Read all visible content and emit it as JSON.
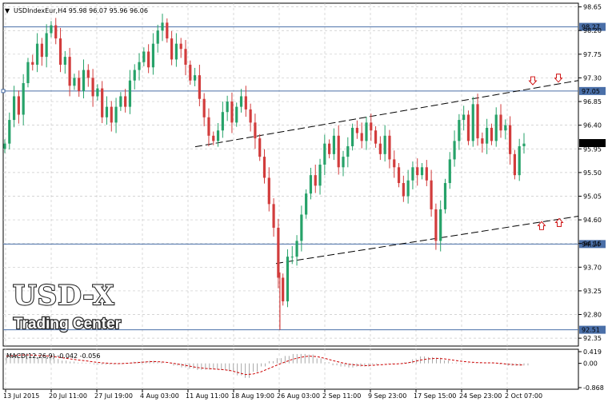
{
  "chart_data": {
    "type": "candlestick",
    "title": "USDIndexEur,H4  95.98 96.07 95.96 96.06",
    "symbol": "USDIndexEur,H4",
    "last_ohlc": [
      95.98,
      96.07,
      95.96,
      96.06
    ],
    "ylim": [
      92.2,
      98.72
    ],
    "y_ticks": [
      "98.65",
      "98.20",
      "97.75",
      "97.30",
      "96.85",
      "96.40",
      "95.95",
      "95.50",
      "95.05",
      "94.60",
      "94.15",
      "93.70",
      "93.25",
      "92.80",
      "92.35"
    ],
    "x_ticks": [
      "13 Jul 2015",
      "20 Jul 11:00",
      "27 Jul 19:00",
      "4 Aug 03:00",
      "11 Aug 11:00",
      "18 Aug 19:00",
      "26 Aug 03:00",
      "2 Sep 11:00",
      "9 Sep 23:00",
      "17 Sep 15:00",
      "24 Sep 23:00",
      "2 Oct 07:00"
    ],
    "grid": true,
    "horizontal_levels": [
      {
        "label": "98.27",
        "value": 98.27
      },
      {
        "label": "97.05",
        "value": 97.05
      },
      {
        "label": "94.14",
        "value": 94.14
      },
      {
        "label": "92.51",
        "value": 92.51
      }
    ],
    "current_price_label": "96.06",
    "current_price": 96.06,
    "trendlines": [
      {
        "name": "upper channel",
        "from": [
          "11 Aug 11:00",
          95.99
        ],
        "to": [
          "right edge",
          97.25
        ]
      },
      {
        "name": "lower channel",
        "from": [
          "26 Aug 03:00",
          93.77
        ],
        "to": [
          "right edge",
          94.67
        ]
      }
    ],
    "arrows": [
      {
        "direction": "down",
        "near": 97.23
      },
      {
        "direction": "down",
        "near": 97.28
      },
      {
        "direction": "up",
        "near": 94.49
      },
      {
        "direction": "up",
        "near": 94.55
      }
    ],
    "watermark": {
      "line1": "USD-X",
      "line2": "Trading Center"
    },
    "macd": {
      "label": "MACD(12,26,9) -0.042 -0.056",
      "params": "12,26,9",
      "macd_value": -0.042,
      "signal_value": -0.056,
      "ylim": [
        -0.868,
        0.419
      ],
      "y_ticks": [
        "0.419",
        "0.00",
        "-0.868"
      ],
      "signal_color": "#cc0000",
      "histogram_color": "#a8a8a8"
    },
    "colors": {
      "bull": "#26a269",
      "bear": "#d23c3c",
      "level_line": "#4a6fa8",
      "grid": "#c8c8c8"
    },
    "prices": [
      96.05,
      96.5,
      96.95,
      96.6,
      97.2,
      97.6,
      97.55,
      97.95,
      97.7,
      98.15,
      98.3,
      98.05,
      97.55,
      97.7,
      97.15,
      97.3,
      97.05,
      97.45,
      97.3,
      96.95,
      97.1,
      96.55,
      96.75,
      96.45,
      96.75,
      96.95,
      96.75,
      97.25,
      97.45,
      97.6,
      97.8,
      97.5,
      97.95,
      98.2,
      98.35,
      98.05,
      97.65,
      97.95,
      97.85,
      97.55,
      97.25,
      97.35,
      96.9,
      96.55,
      96.2,
      96.1,
      96.3,
      96.65,
      96.85,
      96.45,
      96.75,
      96.95,
      96.7,
      96.45,
      96.15,
      95.8,
      95.4,
      94.9,
      94.45,
      93.5,
      93.05,
      93.9,
      93.9,
      94.2,
      94.7,
      95.1,
      95.45,
      95.25,
      95.65,
      96.05,
      95.85,
      96.2,
      95.6,
      95.8,
      96.0,
      96.35,
      96.25,
      96.1,
      96.45,
      96.3,
      96.05,
      95.85,
      96.2,
      95.75,
      95.6,
      95.3,
      95.05,
      95.35,
      95.6,
      95.45,
      95.6,
      95.35,
      94.8,
      94.2,
      94.8,
      95.3,
      95.75,
      96.1,
      96.5,
      96.6,
      96.1,
      96.8,
      96.15,
      96.05,
      96.35,
      96.1,
      96.6,
      96.3,
      96.4,
      95.85,
      95.45,
      96.0,
      96.05
    ],
    "macd_signal": [
      0.26,
      0.28,
      0.3,
      0.3,
      0.28,
      0.27,
      0.24,
      0.2,
      0.16,
      0.12,
      0.09,
      0.05,
      0.02,
      0.0,
      -0.01,
      0.0,
      0.02,
      0.04,
      0.06,
      0.06,
      0.04,
      0.0,
      -0.05,
      -0.1,
      -0.15,
      -0.18,
      -0.2,
      -0.22,
      -0.25,
      -0.32,
      -0.4,
      -0.38,
      -0.3,
      -0.18,
      -0.06,
      0.05,
      0.15,
      0.22,
      0.26,
      0.24,
      0.18,
      0.1,
      0.03,
      -0.03,
      -0.06,
      -0.08,
      -0.07,
      -0.05,
      -0.03,
      -0.02,
      0.0,
      0.05,
      0.12,
      0.16,
      0.18,
      0.16,
      0.12,
      0.08,
      0.05,
      0.03,
      0.02,
      0.02,
      0.0,
      -0.03,
      -0.05,
      -0.06
    ]
  }
}
